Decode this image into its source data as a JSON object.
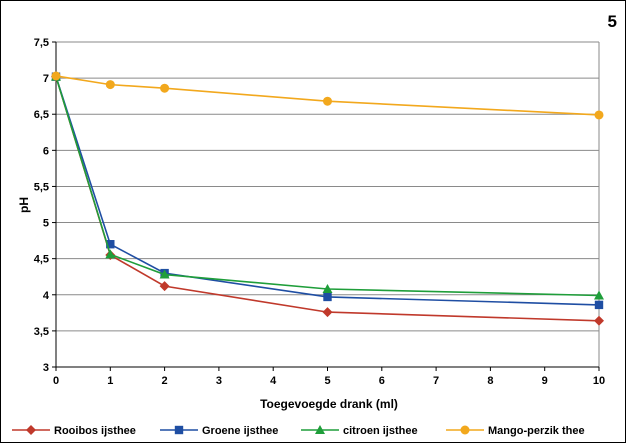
{
  "figure_number": "5",
  "chart_data": {
    "type": "line",
    "xlabel": "Toegevoegde drank (ml)",
    "ylabel": "pH",
    "xlim": [
      0,
      10
    ],
    "ylim": [
      3,
      7.5
    ],
    "x_ticks": [
      "0",
      "1",
      "2",
      "3",
      "4",
      "5",
      "6",
      "7",
      "8",
      "9",
      "10"
    ],
    "y_ticks": [
      "3",
      "3,5",
      "4",
      "4,5",
      "5",
      "5,5",
      "6",
      "6,5",
      "7",
      "7,5"
    ],
    "grid": "horizontal",
    "legend_position": "bottom",
    "series": [
      {
        "name": "Rooibos ijsthee",
        "color": "#c0392b",
        "marker": "diamond",
        "x": [
          0,
          1,
          2,
          5,
          10
        ],
        "y": [
          7.02,
          4.55,
          4.12,
          3.76,
          3.64
        ]
      },
      {
        "name": "Groene ijsthee",
        "color": "#1f4ea3",
        "marker": "square",
        "x": [
          0,
          1,
          2,
          5,
          10
        ],
        "y": [
          7.02,
          4.7,
          4.3,
          3.97,
          3.86
        ]
      },
      {
        "name": "citroen ijsthee",
        "color": "#1f9e3a",
        "marker": "triangle",
        "x": [
          0,
          1,
          2,
          5,
          10
        ],
        "y": [
          7.02,
          4.56,
          4.28,
          4.08,
          3.99
        ]
      },
      {
        "name": "Mango-perzik thee",
        "color": "#f2a81d",
        "marker": "circle",
        "x": [
          0,
          1,
          2,
          5,
          10
        ],
        "y": [
          7.03,
          6.91,
          6.86,
          6.68,
          6.49
        ]
      }
    ]
  }
}
